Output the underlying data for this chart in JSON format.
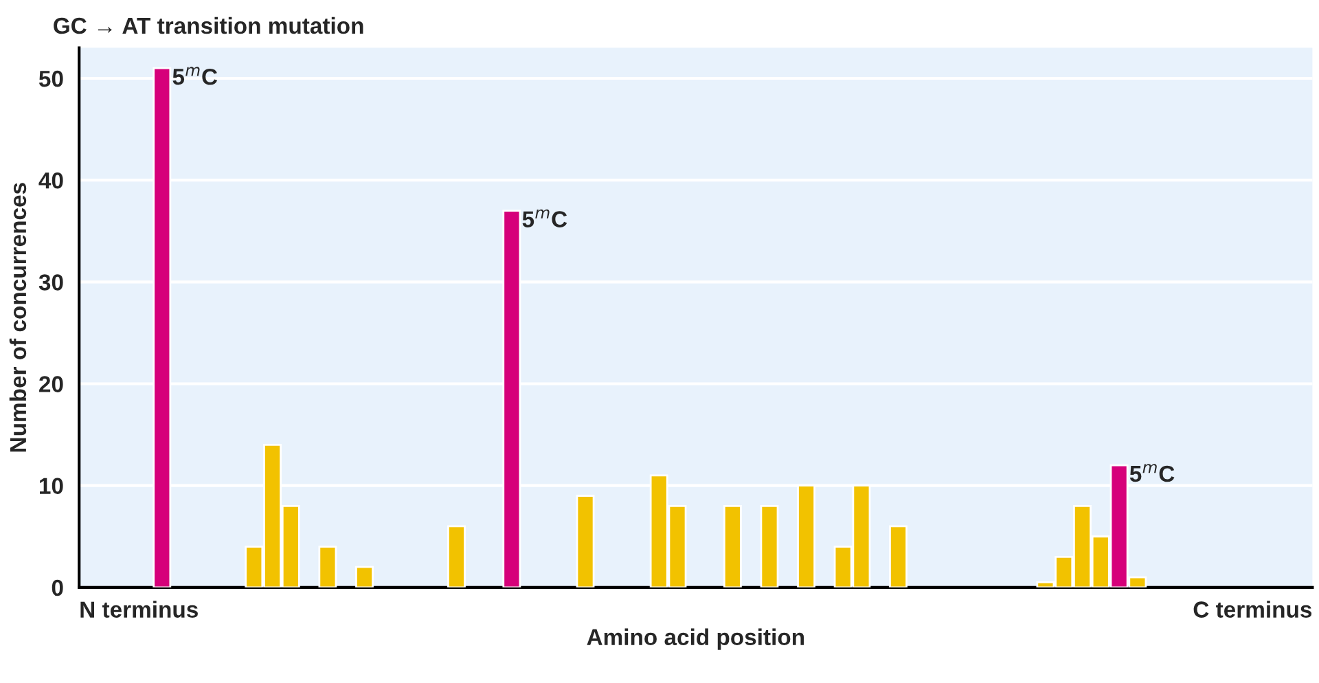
{
  "chart_data": {
    "type": "bar",
    "title": "GC → AT transition mutation",
    "xlabel": "Amino acid position",
    "ylabel": "Number of concurrences",
    "categories": [
      null,
      null,
      null,
      null,
      null,
      null,
      null,
      null,
      null,
      null,
      null,
      null,
      null,
      null,
      null,
      null,
      null,
      null,
      null,
      null,
      null,
      null,
      null,
      null,
      null,
      null,
      null,
      null,
      null,
      null,
      null,
      null,
      null,
      null,
      null,
      null,
      null,
      null,
      null,
      null,
      null,
      null,
      null,
      null,
      null,
      null,
      null,
      null,
      null,
      null,
      null,
      null,
      null,
      null,
      null,
      null,
      null,
      null,
      null,
      null,
      null,
      null,
      null,
      null,
      null,
      null,
      null
    ],
    "values": [
      null,
      null,
      null,
      null,
      51,
      null,
      null,
      null,
      null,
      4,
      14,
      8,
      null,
      4,
      null,
      2,
      null,
      null,
      null,
      null,
      6,
      null,
      null,
      37,
      null,
      null,
      null,
      9,
      null,
      null,
      null,
      11,
      8,
      null,
      null,
      8,
      null,
      8,
      null,
      10,
      null,
      4,
      10,
      null,
      6,
      null,
      null,
      null,
      null,
      null,
      null,
      null,
      0.5,
      3,
      8,
      5,
      12,
      1,
      null,
      null,
      null,
      null,
      null,
      null,
      null,
      null,
      null
    ],
    "colors": [
      "#f2c200",
      "#f2c200",
      "#f2c200",
      "#f2c200",
      "#d6007a",
      "#f2c200",
      "#f2c200",
      "#f2c200",
      "#f2c200",
      "#f2c200",
      "#f2c200",
      "#f2c200",
      "#f2c200",
      "#f2c200",
      "#f2c200",
      "#f2c200",
      "#f2c200",
      "#f2c200",
      "#f2c200",
      "#f2c200",
      "#f2c200",
      "#f2c200",
      "#f2c200",
      "#d6007a",
      "#f2c200",
      "#f2c200",
      "#f2c200",
      "#f2c200",
      "#f2c200",
      "#f2c200",
      "#f2c200",
      "#f2c200",
      "#f2c200",
      "#f2c200",
      "#f2c200",
      "#f2c200",
      "#f2c200",
      "#f2c200",
      "#f2c200",
      "#f2c200",
      "#f2c200",
      "#f2c200",
      "#f2c200",
      "#f2c200",
      "#f2c200",
      "#f2c200",
      "#f2c200",
      "#f2c200",
      "#f2c200",
      "#f2c200",
      "#f2c200",
      "#f2c200",
      "#f2c200",
      "#f2c200",
      "#f2c200",
      "#f2c200",
      "#d6007a",
      "#f2c200",
      "#f2c200",
      "#f2c200",
      "#f2c200",
      "#f2c200",
      "#f2c200",
      "#f2c200",
      "#f2c200",
      "#f2c200",
      "#f2c200"
    ],
    "annotations": [
      "N terminus",
      "C terminus",
      "5$^{m}$C",
      "5$^{m}$C",
      "5$^{m}$C"
    ],
    "ylim": [
      0,
      53
    ],
    "yticks": [
      0,
      10,
      20,
      30,
      40,
      50
    ],
    "grid": "y",
    "legend": false
  }
}
